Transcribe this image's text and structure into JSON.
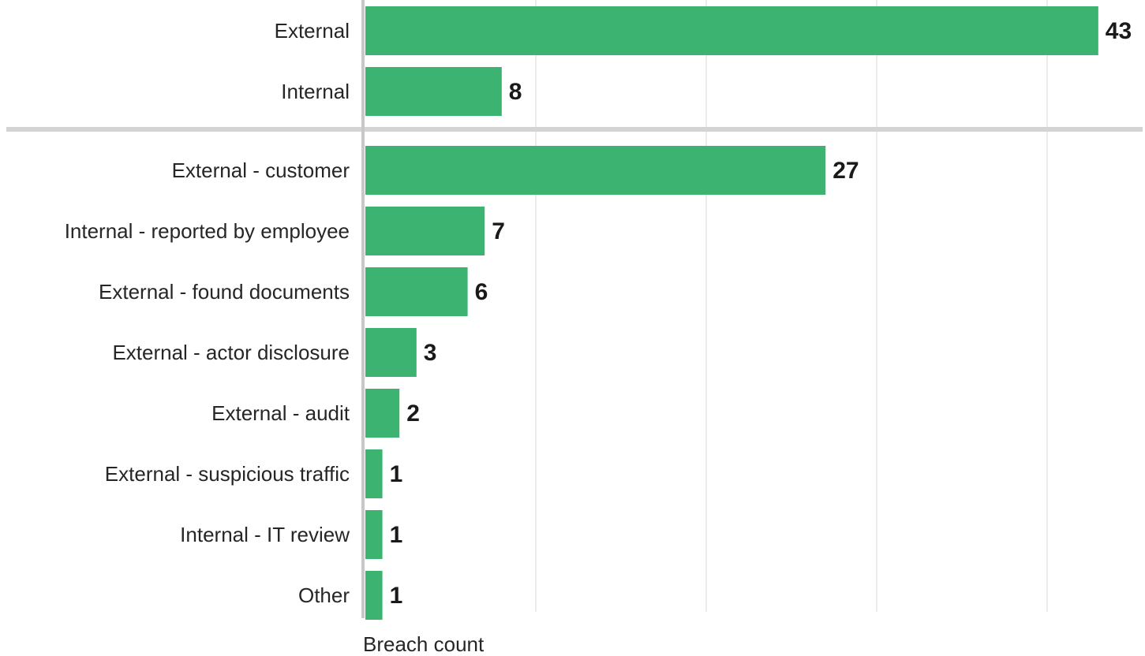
{
  "chart_data": {
    "type": "bar",
    "orientation": "horizontal",
    "xlabel": "Breach count",
    "xlim": [
      0,
      45
    ],
    "gridlines": [
      0,
      10,
      20,
      30,
      40
    ],
    "bar_color": "#3cb371",
    "groups": [
      {
        "categories": [
          "External",
          "Internal"
        ],
        "values": [
          43,
          8
        ]
      },
      {
        "categories": [
          "External - customer",
          "Internal - reported by employee",
          "External - found documents",
          "External - actor disclosure",
          "External - audit",
          "External - suspicious traffic",
          "Internal - IT review",
          "Other"
        ],
        "values": [
          27,
          7,
          6,
          3,
          2,
          1,
          1,
          1
        ]
      }
    ]
  }
}
